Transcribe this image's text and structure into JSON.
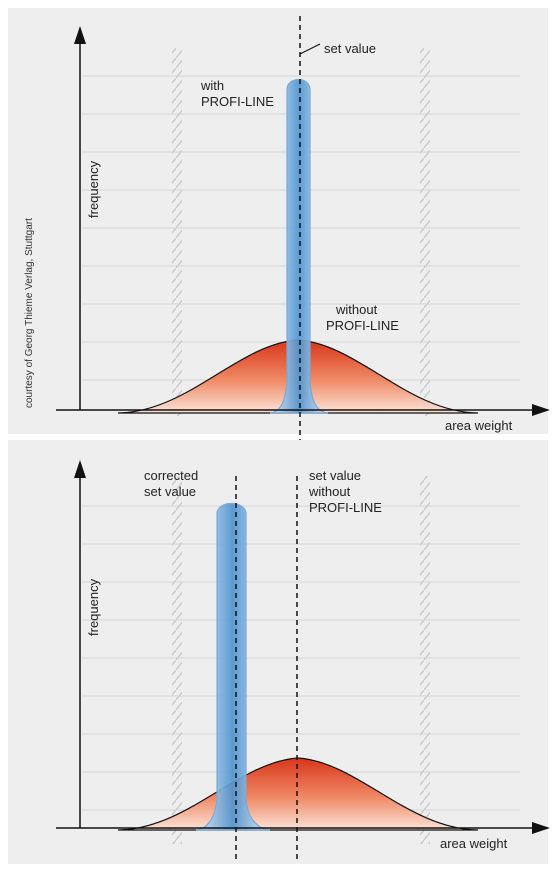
{
  "credit": "courtesy of Georg Thieme Verlag, Stuttgart",
  "top_panel": {
    "y_axis_label": "frequency",
    "x_axis_label": "area weight",
    "set_value_label": "set value",
    "with_label_1": "with",
    "with_label_2": "PROFI-LINE",
    "without_label_1": "without",
    "without_label_2": "PROFI-LINE"
  },
  "bottom_panel": {
    "y_axis_label": "frequency",
    "x_axis_label": "area weight",
    "corrected_label_1": "corrected",
    "corrected_label_2": "set value",
    "setvalue_label_1": "set value",
    "setvalue_label_2": "without",
    "setvalue_label_3": "PROFI-LINE"
  },
  "colors": {
    "narrow_fill": "#5b9bd5",
    "wide_fill": "#e0401a",
    "grid": "#d4d4d4",
    "axis": "#111111"
  }
}
